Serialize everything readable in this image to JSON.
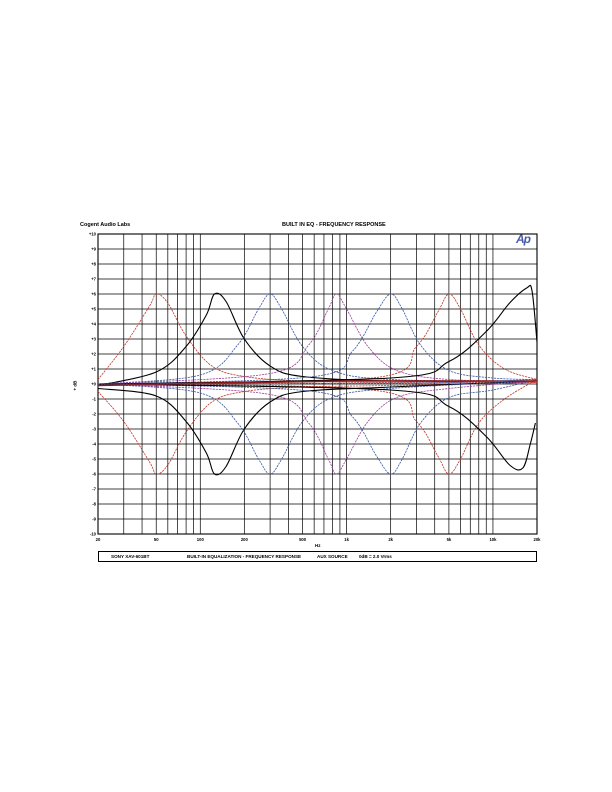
{
  "header": {
    "left": "Cogent Audio Labs",
    "center": "BUILT IN EQ   -  FREQUENCY RESPONSE",
    "logo": "Ap"
  },
  "caption": {
    "model": "SONY XAV-601BT",
    "title": "BUILT-IN EQUALIZATION  -  FREQUENCY RESPONSE",
    "source": "AUX SOURCE",
    "reference": "0dB = 2.0 Vrms"
  },
  "chart_data": {
    "type": "line",
    "xlabel": "Hz",
    "ylabel": "+ dB",
    "xscale": "log",
    "xlim": [
      20,
      20000
    ],
    "ylim": [
      -10,
      10
    ],
    "grid": true,
    "x_tick_labels": [
      "20",
      "50",
      "100",
      "200",
      "500",
      "1k",
      "2k",
      "5k",
      "10k",
      "20k"
    ],
    "y_tick_labels": [
      "+10",
      "+9",
      "+8",
      "+7",
      "+6",
      "+5",
      "+4",
      "+3",
      "+2",
      "+1",
      "+0",
      "-1",
      "-2",
      "-3",
      "-4",
      "-5",
      "-6",
      "-7",
      "-8",
      "-9",
      "-10"
    ],
    "colors": {
      "black": "#000000",
      "red": "#c0392b",
      "blue": "#3b5ba8",
      "purple": "#a040a0",
      "darkred": "#8b1a1a"
    },
    "series": [
      {
        "color": "red",
        "values": [
          [
            20,
            0.3
          ],
          [
            30,
            2.5
          ],
          [
            45,
            5.2
          ],
          [
            50,
            6
          ],
          [
            60,
            5.4
          ],
          [
            80,
            3.2
          ],
          [
            120,
            1.2
          ],
          [
            200,
            0.5
          ],
          [
            500,
            0.2
          ],
          [
            2000,
            0.1
          ],
          [
            20000,
            0.1
          ]
        ]
      },
      {
        "color": "red",
        "values": [
          [
            20,
            -0.5
          ],
          [
            30,
            -2.5
          ],
          [
            45,
            -5.2
          ],
          [
            50,
            -6
          ],
          [
            60,
            -5.4
          ],
          [
            80,
            -3.2
          ],
          [
            120,
            -1.2
          ],
          [
            200,
            -0.5
          ],
          [
            500,
            -0.2
          ],
          [
            2000,
            -0.1
          ],
          [
            20000,
            0.1
          ]
        ]
      },
      {
        "color": "black",
        "values": [
          [
            20,
            -0.1
          ],
          [
            50,
            0.8
          ],
          [
            80,
            2.5
          ],
          [
            110,
            4.6
          ],
          [
            125,
            6
          ],
          [
            150,
            5.5
          ],
          [
            200,
            3
          ],
          [
            300,
            1.2
          ],
          [
            500,
            0.5
          ],
          [
            2000,
            0.2
          ],
          [
            20000,
            0.2
          ]
        ]
      },
      {
        "color": "black",
        "values": [
          [
            20,
            -0.3
          ],
          [
            50,
            -0.8
          ],
          [
            80,
            -2.5
          ],
          [
            110,
            -4.6
          ],
          [
            125,
            -6
          ],
          [
            150,
            -5.5
          ],
          [
            200,
            -3
          ],
          [
            300,
            -1.2
          ],
          [
            500,
            -0.5
          ],
          [
            2000,
            -0.2
          ],
          [
            20000,
            0.2
          ]
        ]
      },
      {
        "color": "blue",
        "values": [
          [
            20,
            0
          ],
          [
            100,
            0.6
          ],
          [
            180,
            2.6
          ],
          [
            250,
            5
          ],
          [
            300,
            6
          ],
          [
            360,
            5
          ],
          [
            500,
            2.5
          ],
          [
            800,
            0.9
          ],
          [
            2000,
            0.3
          ],
          [
            20000,
            0.2
          ]
        ]
      },
      {
        "color": "blue",
        "values": [
          [
            20,
            0
          ],
          [
            100,
            -0.6
          ],
          [
            180,
            -2.6
          ],
          [
            250,
            -5
          ],
          [
            300,
            -6
          ],
          [
            360,
            -5
          ],
          [
            500,
            -2.5
          ],
          [
            800,
            -0.9
          ],
          [
            2000,
            -0.3
          ],
          [
            20000,
            0.2
          ]
        ]
      },
      {
        "color": "purple",
        "values": [
          [
            20,
            0
          ],
          [
            300,
            0.7
          ],
          [
            550,
            2.6
          ],
          [
            750,
            5
          ],
          [
            850,
            6
          ],
          [
            1000,
            5
          ],
          [
            1400,
            2.5
          ],
          [
            2200,
            0.9
          ],
          [
            5000,
            0.3
          ],
          [
            20000,
            0.2
          ]
        ]
      },
      {
        "color": "purple",
        "values": [
          [
            20,
            0
          ],
          [
            300,
            -0.7
          ],
          [
            550,
            -2.6
          ],
          [
            750,
            -5
          ],
          [
            850,
            -6
          ],
          [
            1000,
            -5
          ],
          [
            1400,
            -2.5
          ],
          [
            2200,
            -0.9
          ],
          [
            5000,
            -0.3
          ],
          [
            20000,
            0.2
          ]
        ]
      },
      {
        "color": "blue",
        "values": [
          [
            20,
            0
          ],
          [
            600,
            0.5
          ],
          [
            1100,
            2.2
          ],
          [
            1600,
            4.8
          ],
          [
            2000,
            6
          ],
          [
            2400,
            5
          ],
          [
            3200,
            2.6
          ],
          [
            5000,
            0.9
          ],
          [
            10000,
            0.4
          ],
          [
            20000,
            0.3
          ]
        ]
      },
      {
        "color": "blue",
        "values": [
          [
            20,
            0
          ],
          [
            600,
            -0.5
          ],
          [
            1100,
            -2.2
          ],
          [
            1600,
            -4.8
          ],
          [
            2000,
            -6
          ],
          [
            2400,
            -5
          ],
          [
            3200,
            -2.6
          ],
          [
            5000,
            -0.9
          ],
          [
            10000,
            -0.4
          ],
          [
            20000,
            0.3
          ]
        ]
      },
      {
        "color": "red",
        "values": [
          [
            20,
            0
          ],
          [
            1500,
            0.4
          ],
          [
            3000,
            2.5
          ],
          [
            4200,
            4.8
          ],
          [
            5000,
            6
          ],
          [
            6000,
            5
          ],
          [
            8000,
            2.6
          ],
          [
            12000,
            1
          ],
          [
            20000,
            0.3
          ]
        ]
      },
      {
        "color": "red",
        "values": [
          [
            20,
            0
          ],
          [
            1500,
            -0.4
          ],
          [
            3000,
            -2.5
          ],
          [
            4200,
            -4.8
          ],
          [
            5000,
            -6
          ],
          [
            6000,
            -5
          ],
          [
            8000,
            -2.6
          ],
          [
            12000,
            -1
          ],
          [
            20000,
            0.3
          ]
        ]
      },
      {
        "color": "black",
        "values": [
          [
            20,
            0
          ],
          [
            2000,
            0.4
          ],
          [
            5000,
            1.5
          ],
          [
            9000,
            3.5
          ],
          [
            13000,
            5.4
          ],
          [
            17000,
            6.4
          ],
          [
            18500,
            6.2
          ],
          [
            20000,
            2.8
          ]
        ]
      },
      {
        "color": "black",
        "values": [
          [
            20,
            0
          ],
          [
            2000,
            -0.4
          ],
          [
            5000,
            -1.5
          ],
          [
            9000,
            -3.5
          ],
          [
            13000,
            -5.4
          ],
          [
            16000,
            -5.6
          ],
          [
            18000,
            -4
          ],
          [
            19500,
            -2.6
          ]
        ]
      },
      {
        "color": "darkred",
        "values": [
          [
            20,
            -0.1
          ],
          [
            100,
            0.05
          ],
          [
            500,
            0.15
          ],
          [
            1000,
            0.2
          ],
          [
            5000,
            0.2
          ],
          [
            20000,
            0.2
          ]
        ]
      },
      {
        "color": "blue",
        "values": [
          [
            20,
            0
          ],
          [
            1000,
            0.05
          ],
          [
            5000,
            0.1
          ],
          [
            20000,
            0.3
          ]
        ]
      }
    ]
  }
}
